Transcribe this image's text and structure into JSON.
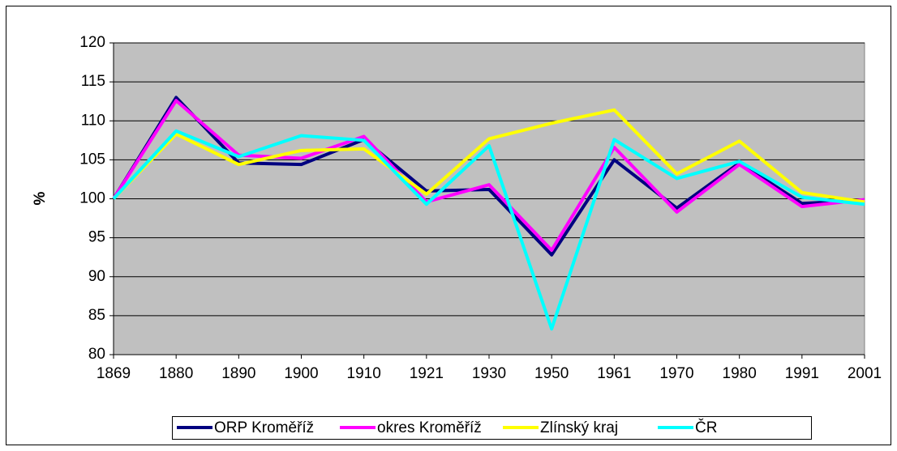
{
  "chart_data": {
    "type": "line",
    "y_label": "%",
    "categories": [
      "1869",
      "1880",
      "1890",
      "1900",
      "1910",
      "1921",
      "1930",
      "1950",
      "1961",
      "1970",
      "1980",
      "1991",
      "2001"
    ],
    "series": [
      {
        "name": "ORP Kroměříž",
        "color": "#000080",
        "values": [
          100,
          113,
          104.6,
          104.4,
          107.6,
          101,
          101.2,
          92.8,
          105,
          98.8,
          104.6,
          99.4,
          99.8
        ]
      },
      {
        "name": "okres Kroměříž",
        "color": "#ff00ff",
        "values": [
          100,
          112.6,
          105.6,
          105.2,
          108,
          99.6,
          101.8,
          93.4,
          106.6,
          98.3,
          104.4,
          99,
          99.9
        ]
      },
      {
        "name": "Zlínský kraj",
        "color": "#ffff00",
        "values": [
          100,
          108.3,
          104.4,
          106.2,
          106.4,
          100.6,
          107.7,
          109.7,
          111.4,
          103.2,
          107.4,
          100.8,
          99.6
        ]
      },
      {
        "name": "ČR",
        "color": "#00ffff",
        "values": [
          100,
          108.7,
          105.4,
          108.1,
          107.5,
          99.3,
          106.8,
          83.3,
          107.6,
          102.6,
          104.8,
          100.2,
          99.3
        ]
      }
    ],
    "ylim": [
      80,
      120
    ],
    "yticks": [
      80,
      85,
      90,
      95,
      100,
      105,
      110,
      115,
      120
    ],
    "grid": true,
    "legend": "bottom"
  }
}
